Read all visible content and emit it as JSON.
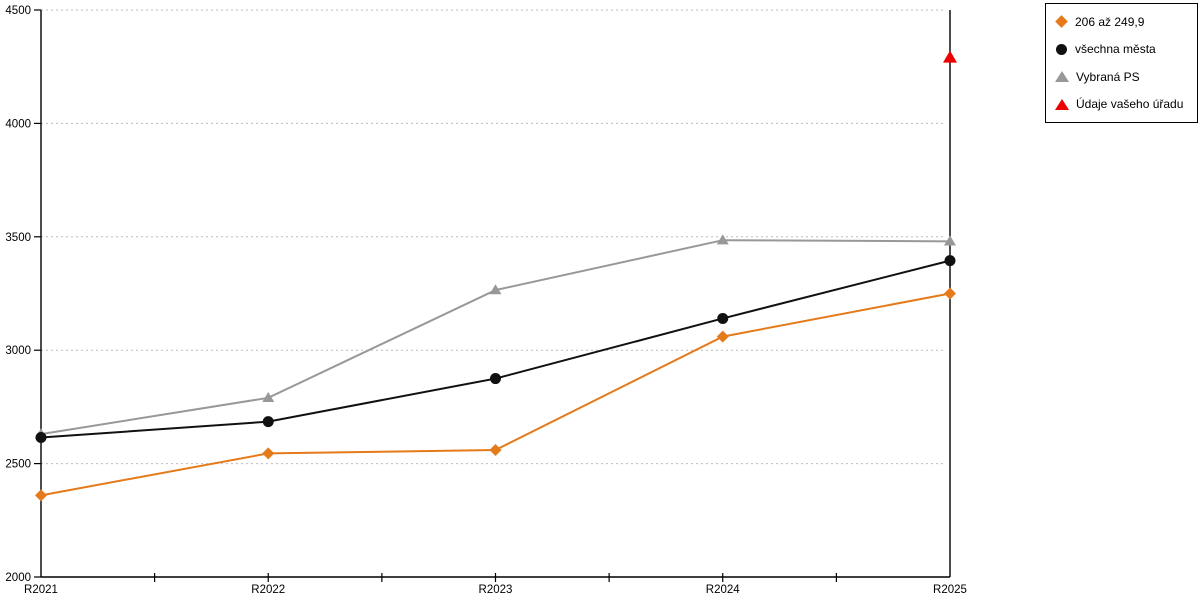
{
  "chart_data": {
    "type": "line",
    "categories": [
      "R2021",
      "R2022",
      "R2023",
      "R2024",
      "R2025"
    ],
    "series": [
      {
        "name": "206 až 249,9",
        "marker": "diamond",
        "color": "#E47A1A",
        "values": [
          2360,
          2545,
          2560,
          3060,
          3250
        ]
      },
      {
        "name": "všechna města",
        "marker": "circle",
        "color": "#111111",
        "values": [
          2615,
          2685,
          2875,
          3140,
          3395
        ]
      },
      {
        "name": "Vybraná PS",
        "marker": "triangle",
        "color": "#989898",
        "values": [
          2630,
          2790,
          3265,
          3485,
          3480
        ]
      },
      {
        "name": "Údaje vašeho úřadu",
        "marker": "triangle",
        "color": "#EE0000",
        "values": [
          null,
          null,
          null,
          null,
          4290
        ]
      }
    ],
    "title": "",
    "xlabel": "",
    "ylabel": "",
    "ylim": [
      2000,
      4500
    ],
    "y_ticks": [
      2000,
      2500,
      3000,
      3500,
      4000,
      4500
    ],
    "grid": "horizontal-dotted",
    "grid_color": "#BBBBBB",
    "axis_color": "#000000",
    "background": "#FFFFFF",
    "legend_position": "top-right"
  },
  "legend": {
    "items": [
      {
        "label": "206 až 249,9",
        "marker": "diamond-icon",
        "color": "#E47A1A"
      },
      {
        "label": "všechna města",
        "marker": "circle-icon",
        "color": "#111111"
      },
      {
        "label": "Vybraná PS",
        "marker": "triangle-icon",
        "color": "#989898"
      },
      {
        "label": "Údaje vašeho úřadu",
        "marker": "triangle-icon",
        "color": "#EE0000"
      }
    ]
  }
}
